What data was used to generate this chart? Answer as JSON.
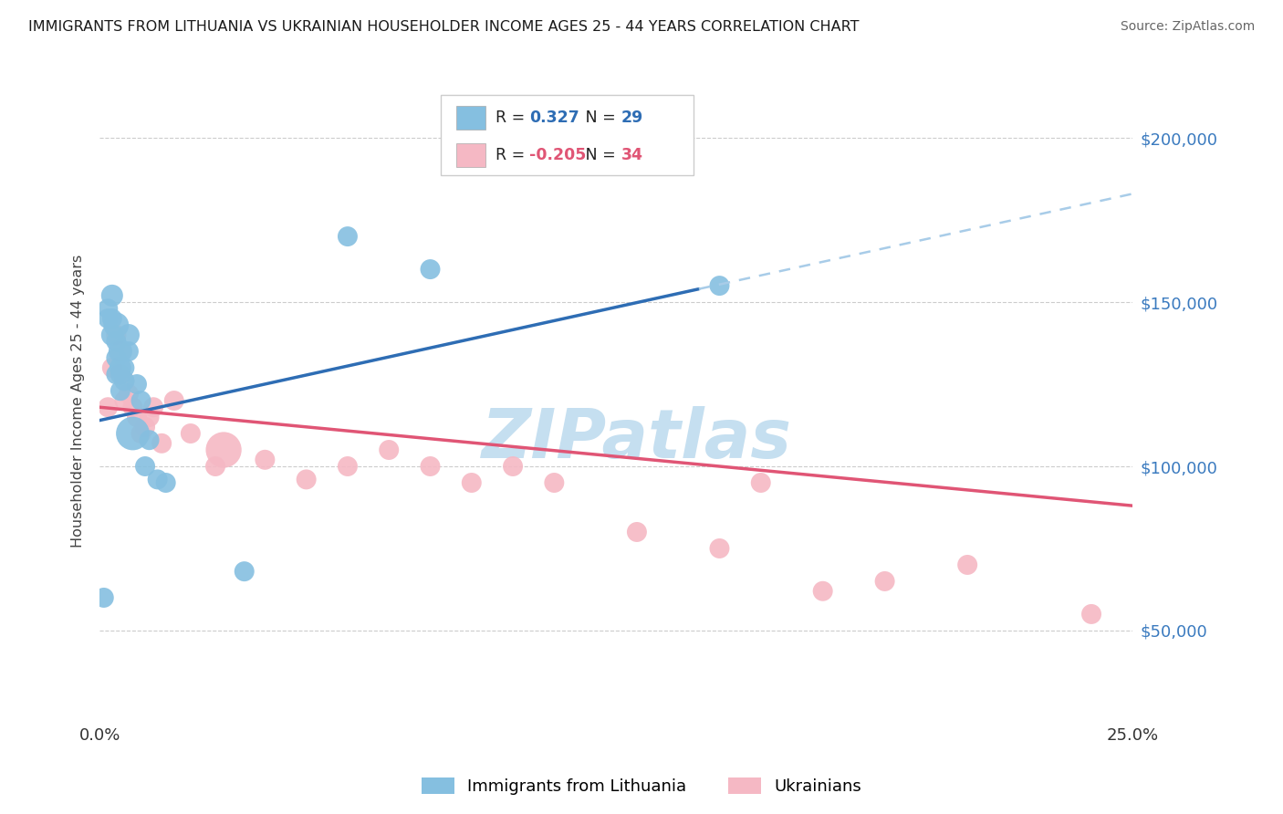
{
  "title": "IMMIGRANTS FROM LITHUANIA VS UKRAINIAN HOUSEHOLDER INCOME AGES 25 - 44 YEARS CORRELATION CHART",
  "source": "Source: ZipAtlas.com",
  "ylabel": "Householder Income Ages 25 - 44 years",
  "legend_entry1_r": "0.327",
  "legend_entry1_n": "29",
  "legend_entry2_r": "-0.205",
  "legend_entry2_n": "34",
  "legend_label1": "Immigrants from Lithuania",
  "legend_label2": "Ukrainians",
  "blue_color": "#85bfe0",
  "pink_color": "#f5b8c4",
  "blue_line_color": "#2e6db4",
  "pink_line_color": "#e05575",
  "blue_dashed_color": "#a8cce8",
  "watermark_color": "#c5dff0",
  "ytick_labels": [
    "$50,000",
    "$100,000",
    "$150,000",
    "$200,000"
  ],
  "ytick_values": [
    50000,
    100000,
    150000,
    200000
  ],
  "ylim": [
    22000,
    218000
  ],
  "xlim": [
    0.0,
    0.25
  ],
  "background_color": "#ffffff",
  "blue_line_x": [
    0.0,
    0.145,
    0.25
  ],
  "blue_line_y": [
    114000,
    154000,
    183000
  ],
  "pink_line_x": [
    0.0,
    0.25
  ],
  "pink_line_y": [
    118000,
    88000
  ],
  "blue_scatter_x": [
    0.001,
    0.002,
    0.002,
    0.003,
    0.003,
    0.003,
    0.004,
    0.004,
    0.004,
    0.004,
    0.005,
    0.005,
    0.005,
    0.005,
    0.006,
    0.006,
    0.007,
    0.007,
    0.008,
    0.009,
    0.01,
    0.011,
    0.012,
    0.014,
    0.016,
    0.035,
    0.06,
    0.08,
    0.15
  ],
  "blue_scatter_y": [
    60000,
    148000,
    145000,
    152000,
    145000,
    140000,
    143000,
    138000,
    133000,
    128000,
    135000,
    130000,
    128000,
    123000,
    130000,
    126000,
    140000,
    135000,
    110000,
    125000,
    120000,
    100000,
    108000,
    96000,
    95000,
    68000,
    170000,
    160000,
    155000
  ],
  "blue_scatter_size": [
    25,
    25,
    25,
    30,
    25,
    30,
    40,
    25,
    25,
    25,
    35,
    30,
    25,
    25,
    25,
    25,
    30,
    25,
    70,
    25,
    25,
    25,
    25,
    25,
    25,
    25,
    25,
    25,
    25
  ],
  "pink_scatter_x": [
    0.002,
    0.003,
    0.004,
    0.005,
    0.005,
    0.006,
    0.006,
    0.007,
    0.008,
    0.009,
    0.01,
    0.011,
    0.012,
    0.013,
    0.015,
    0.018,
    0.022,
    0.028,
    0.03,
    0.04,
    0.05,
    0.06,
    0.07,
    0.08,
    0.09,
    0.1,
    0.11,
    0.13,
    0.15,
    0.16,
    0.175,
    0.19,
    0.21,
    0.24
  ],
  "pink_scatter_y": [
    118000,
    130000,
    140000,
    135000,
    128000,
    126000,
    120000,
    122000,
    118000,
    115000,
    110000,
    112000,
    115000,
    118000,
    107000,
    120000,
    110000,
    100000,
    105000,
    102000,
    96000,
    100000,
    105000,
    100000,
    95000,
    100000,
    95000,
    80000,
    75000,
    95000,
    62000,
    65000,
    70000,
    55000
  ],
  "pink_scatter_size": [
    25,
    25,
    25,
    25,
    25,
    25,
    25,
    25,
    25,
    25,
    25,
    25,
    25,
    25,
    25,
    25,
    25,
    25,
    80,
    25,
    25,
    25,
    25,
    25,
    25,
    25,
    25,
    25,
    25,
    25,
    25,
    25,
    25,
    25
  ]
}
